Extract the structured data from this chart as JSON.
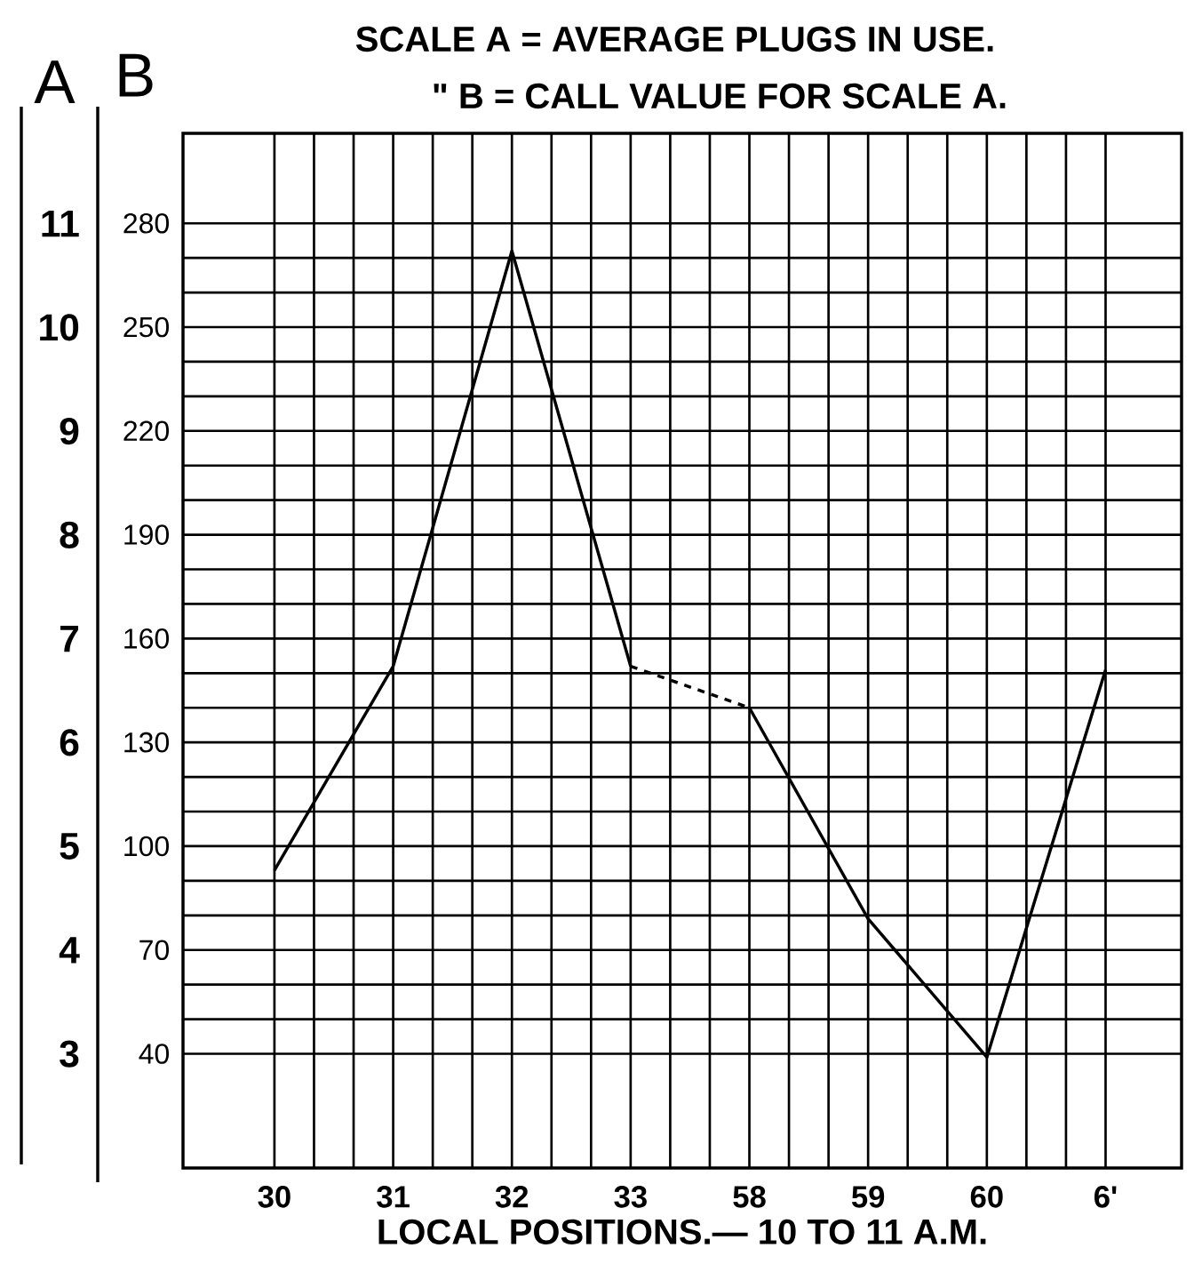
{
  "chart_data": {
    "type": "line",
    "title": "SCALE A = AVERAGE PLUGS IN USE.",
    "subtitle": "\"      B = CALL VALUE FOR SCALE A.",
    "xlabel": "LOCAL POSITIONS.— 10 TO 11 A.M.",
    "ylabel": "B",
    "y2label": "A",
    "categories": [
      "30",
      "31",
      "32",
      "33",
      "58",
      "59",
      "60",
      "6'"
    ],
    "series": [
      {
        "color": "#000000",
        "line_style": "solid",
        "values": [
          93,
          152,
          272,
          152,
          null,
          null,
          null,
          null
        ]
      },
      {
        "color": "#000000",
        "line_style": "solid",
        "values": [
          null,
          null,
          null,
          null,
          140,
          79,
          39,
          151
        ]
      },
      {
        "color": "#000000",
        "line_style": "dashed",
        "values": [
          null,
          null,
          null,
          152,
          140,
          null,
          null,
          null
        ]
      }
    ],
    "ylim": [
      7,
      306
    ],
    "yticks": [
      40,
      70,
      100,
      130,
      160,
      190,
      220,
      250,
      280
    ],
    "y2lim": [
      1.9,
      11.87
    ],
    "y2ticks": [
      3,
      4,
      5,
      6,
      7,
      8,
      9,
      10,
      11
    ],
    "grid": true
  }
}
